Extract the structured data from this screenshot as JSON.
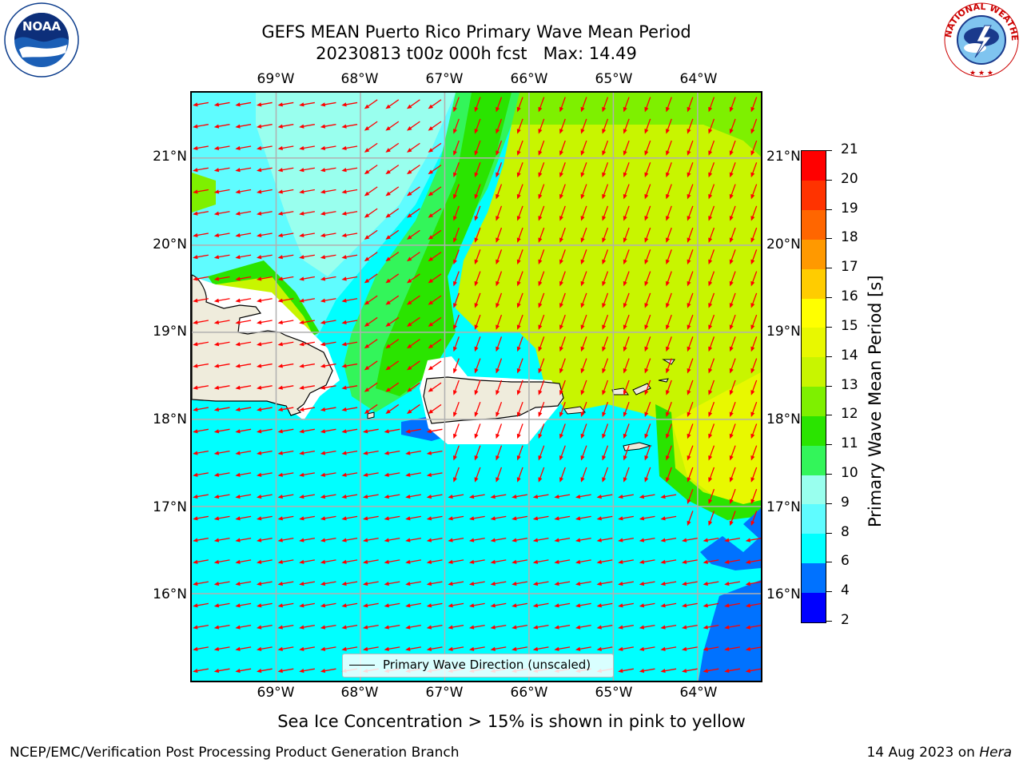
{
  "title": {
    "line1": "GEFS MEAN Puerto Rico Primary Wave Mean Period",
    "line2": "20230813 t00z 000h fcst   Max: 14.49"
  },
  "logos": {
    "left": {
      "name": "NOAA",
      "ring_text": "NATIONAL OCEANIC AND ATMOSPHERIC ADMINISTRATION · U.S. DEPARTMENT OF COMMERCE"
    },
    "right": {
      "name": "NATIONAL WEATHER SERVICE"
    }
  },
  "map": {
    "lon_labels": [
      "69°W",
      "68°W",
      "67°W",
      "66°W",
      "65°W",
      "64°W"
    ],
    "lat_labels": [
      "21°N",
      "20°N",
      "19°N",
      "18°N",
      "17°N",
      "16°N"
    ],
    "lon_range": [
      -70.0,
      -63.25
    ],
    "lat_range": [
      15.0,
      21.75
    ],
    "legend_label": "Primary Wave Direction (unscaled)",
    "arrow_color": "#ff0000",
    "land_color": "#efecdc"
  },
  "colorbar": {
    "label": "Primary Wave Mean Period [s]",
    "ticks": [
      "2",
      "4",
      "6",
      "8",
      "9",
      "10",
      "11",
      "12",
      "13",
      "14",
      "15",
      "16",
      "17",
      "18",
      "19",
      "20",
      "21"
    ],
    "colors": [
      "#0000ff",
      "#0072ff",
      "#00ffff",
      "#5ffcff",
      "#99ffee",
      "#33f55a",
      "#2ae400",
      "#7ef000",
      "#c8f500",
      "#e8f800",
      "#ffff00",
      "#ffcc00",
      "#ff9900",
      "#ff6600",
      "#ff3300",
      "#ff0000"
    ]
  },
  "bottom_note": "Sea Ice Concentration > 15% is shown in pink to yellow",
  "footer": {
    "left": "NCEP/EMC/Verification Post Processing Product Generation Branch",
    "right_date": "14 Aug 2023 on",
    "right_host": "Hera"
  }
}
